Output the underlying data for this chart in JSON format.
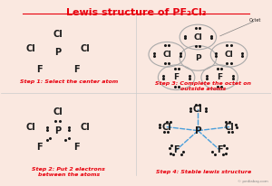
{
  "title": "Lewis structure of PF₂Cl₃",
  "title_color": "#e8000d",
  "bg_color": "#fae8e0",
  "step1_label": "Step 1: Select the center atom",
  "step2_label": "Step 2: Put 2 electrons\nbetween the atoms",
  "step3_label": "Step 3: Complete the octet on\noutside atoms",
  "step4_label": "Step 4: Stable lewis structure",
  "step_color": "#e8000d",
  "atom_color": "#1a1a1a",
  "bond_color": "#4a9fdb",
  "octet_color": "#aaaaaa",
  "dot_color": "#1a1a1a",
  "watermark": "© pediabay.com"
}
